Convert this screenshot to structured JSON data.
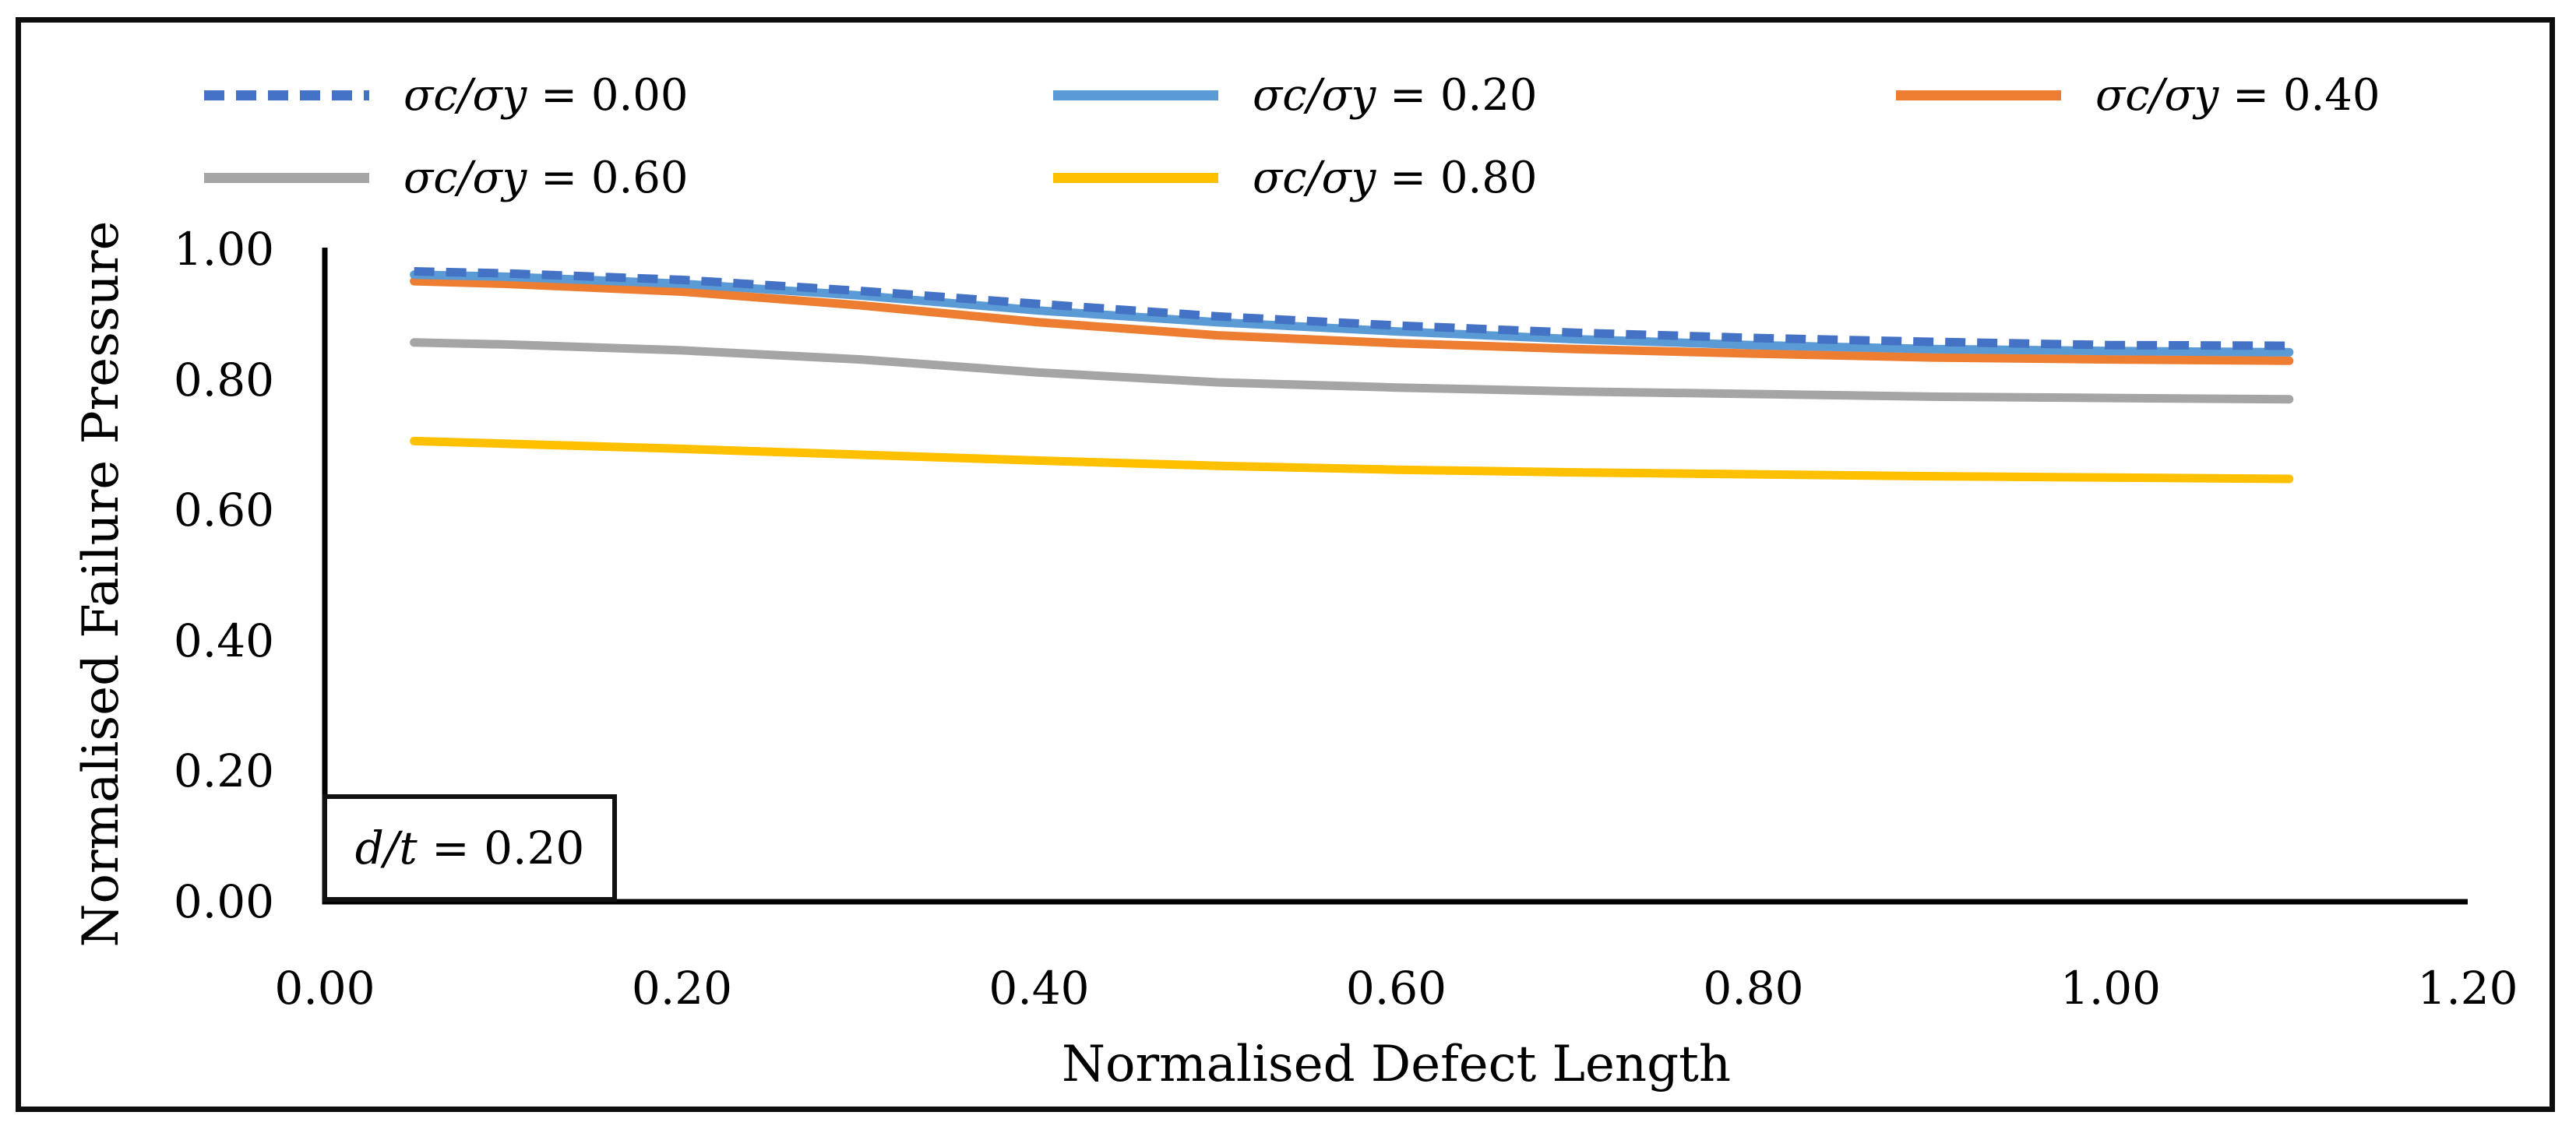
{
  "chart_data": {
    "type": "line",
    "title": "",
    "xlabel": "Normalised Defect Length",
    "ylabel": "Normalised Failure Pressure",
    "xlim": [
      0,
      1.2
    ],
    "ylim": [
      0,
      1.0
    ],
    "x_ticks": [
      "0.00",
      "0.20",
      "0.40",
      "0.60",
      "0.80",
      "1.00",
      "1.20"
    ],
    "y_ticks": [
      "0.00",
      "0.20",
      "0.40",
      "0.60",
      "0.80",
      "1.00"
    ],
    "grid": false,
    "legend_position": "top",
    "axis_color": "#000000",
    "annotation": "d/t = 0.20",
    "x": [
      0.05,
      0.1,
      0.2,
      0.3,
      0.4,
      0.5,
      0.6,
      0.7,
      0.8,
      0.9,
      1.0,
      1.1
    ],
    "series": [
      {
        "name": "σc/σy = 0.00",
        "color": "#4472C4",
        "style": "dashed",
        "values": [
          0.966,
          0.963,
          0.953,
          0.936,
          0.916,
          0.897,
          0.883,
          0.872,
          0.864,
          0.858,
          0.853,
          0.852
        ]
      },
      {
        "name": "σc/σy = 0.20",
        "color": "#5B9BD5",
        "style": "solid",
        "values": [
          0.961,
          0.958,
          0.947,
          0.929,
          0.906,
          0.888,
          0.874,
          0.862,
          0.853,
          0.847,
          0.844,
          0.842
        ]
      },
      {
        "name": "σc/σy = 0.40",
        "color": "#ED7D31",
        "style": "solid",
        "values": [
          0.951,
          0.947,
          0.935,
          0.914,
          0.888,
          0.868,
          0.856,
          0.847,
          0.84,
          0.834,
          0.831,
          0.829
        ]
      },
      {
        "name": "σc/σy = 0.60",
        "color": "#A5A5A5",
        "style": "solid",
        "values": [
          0.857,
          0.854,
          0.845,
          0.831,
          0.811,
          0.796,
          0.788,
          0.782,
          0.778,
          0.774,
          0.772,
          0.77
        ]
      },
      {
        "name": "σc/σy = 0.80",
        "color": "#FFC000",
        "style": "solid",
        "values": [
          0.706,
          0.702,
          0.694,
          0.685,
          0.676,
          0.668,
          0.662,
          0.658,
          0.655,
          0.652,
          0.65,
          0.648
        ]
      }
    ]
  }
}
